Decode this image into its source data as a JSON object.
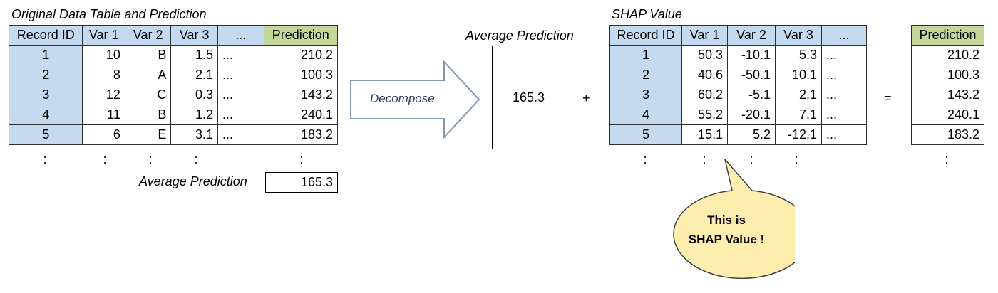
{
  "left_table": {
    "title": "Original Data Table and Prediction",
    "headers": [
      "Record ID",
      "Var 1",
      "Var 2",
      "Var 3",
      "...",
      "Prediction"
    ],
    "rows": [
      [
        "1",
        "10",
        "B",
        "1.5",
        "...",
        "210.2"
      ],
      [
        "2",
        "8",
        "A",
        "2.1",
        "...",
        "100.3"
      ],
      [
        "3",
        "12",
        "C",
        "0.3",
        "...",
        "143.2"
      ],
      [
        "4",
        "11",
        "B",
        "1.2",
        "...",
        "240.1"
      ],
      [
        "5",
        "6",
        "E",
        "3.1",
        "...",
        "183.2"
      ]
    ],
    "continuation": ":",
    "avg_label": "Average Prediction",
    "avg_value": "165.3"
  },
  "arrow": {
    "label": "Decompose"
  },
  "middle": {
    "title": "Average Prediction",
    "value": "165.3",
    "plus": "+",
    "equals": "="
  },
  "shap_table": {
    "title": "SHAP Value",
    "headers": [
      "Record ID",
      "Var 1",
      "Var 2",
      "Var 3",
      "..."
    ],
    "rows": [
      [
        "1",
        "50.3",
        "-10.1",
        "5.3",
        "..."
      ],
      [
        "2",
        "40.6",
        "-50.1",
        "10.1",
        "..."
      ],
      [
        "3",
        "60.2",
        "-5.1",
        "2.1",
        "..."
      ],
      [
        "4",
        "55.2",
        "-20.1",
        "7.1",
        "..."
      ],
      [
        "5",
        "15.1",
        "5.2",
        "-12.1",
        "..."
      ]
    ],
    "continuation": ":"
  },
  "right_table": {
    "header": "Prediction",
    "rows": [
      "210.2",
      "100.3",
      "143.2",
      "240.1",
      "183.2"
    ],
    "continuation": ":"
  },
  "bubble": {
    "line1": "This is",
    "line2": "SHAP Value !"
  },
  "colors": {
    "header_blue": "#c5d9f1",
    "header_green": "#c4d79b",
    "bubble_fill": "#fdeeb0",
    "arrow_stroke": "#8497b0"
  }
}
